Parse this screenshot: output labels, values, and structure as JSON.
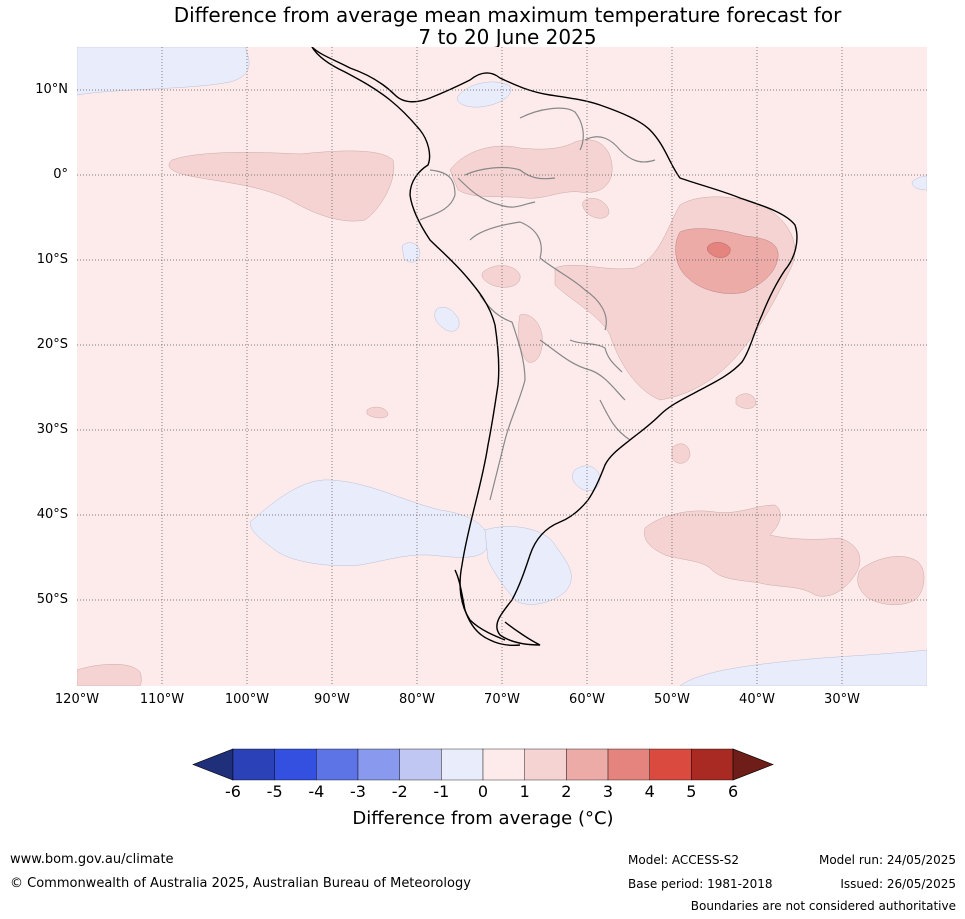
{
  "title_line1": "Difference from average mean maximum temperature forecast for",
  "title_line2": "7 to 20 June 2025",
  "lat_labels": [
    "10°N",
    "0°",
    "10°S",
    "20°S",
    "30°S",
    "40°S",
    "50°S"
  ],
  "lon_labels": [
    "120°W",
    "110°W",
    "100°W",
    "90°W",
    "80°W",
    "70°W",
    "60°W",
    "50°W",
    "40°W",
    "30°W"
  ],
  "colorbar": {
    "title": "Difference from average (°C)",
    "ticks": [
      "-6",
      "-5",
      "-4",
      "-3",
      "-2",
      "-1",
      "0",
      "1",
      "2",
      "3",
      "4",
      "5",
      "6"
    ],
    "colors": [
      "#1f2f7a",
      "#2a41b8",
      "#3350e0",
      "#5c74e6",
      "#8899ee",
      "#c0c7f2",
      "#e9ecfb",
      "#fcebea",
      "#f5d3d2",
      "#edaba8",
      "#e5847e",
      "#da4a3f",
      "#a82a22",
      "#6f1d19"
    ]
  },
  "footer": {
    "website": "www.bom.gov.au/climate",
    "copyright": "© Commonwealth of Australia 2025, Australian Bureau of Meteorology",
    "model": "Model: ACCESS-S2",
    "base_period": "Base period: 1981-2018",
    "model_run": "Model run: 24/05/2025",
    "issued": "Issued: 26/05/2025",
    "disclaimer": "Boundaries are not considered authoritative"
  }
}
